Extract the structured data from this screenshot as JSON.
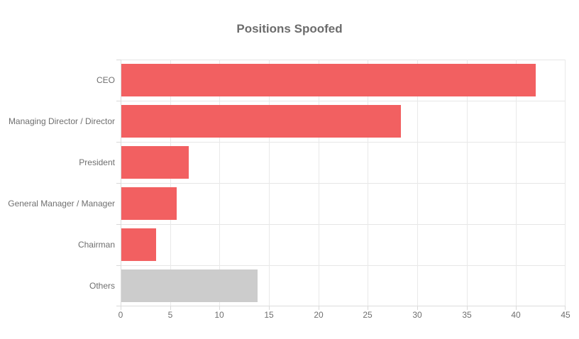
{
  "chart_data": {
    "type": "bar",
    "orientation": "horizontal",
    "title": "Positions Spoofed",
    "categories": [
      "CEO",
      "Managing Director / Director",
      "President",
      "General Manager / Manager",
      "Chairman",
      "Others"
    ],
    "values": [
      41.9,
      28.3,
      6.8,
      5.6,
      3.5,
      13.8
    ],
    "bar_colors": [
      "#f26061",
      "#f26061",
      "#f26061",
      "#f26061",
      "#f26061",
      "#cccccc"
    ],
    "xlabel": "",
    "ylabel": "",
    "xlim": [
      0,
      45
    ],
    "x_ticks": [
      0,
      5,
      10,
      15,
      20,
      25,
      30,
      35,
      40,
      45
    ],
    "grid": true,
    "legend": "none",
    "colors": {
      "bar_default": "#f26061",
      "bar_others": "#cccccc",
      "grid": "#e9e9e9",
      "axis_line": "#dcdcdc",
      "title_text": "#6c6c6c",
      "axis_text": "#6f6f6f"
    }
  }
}
